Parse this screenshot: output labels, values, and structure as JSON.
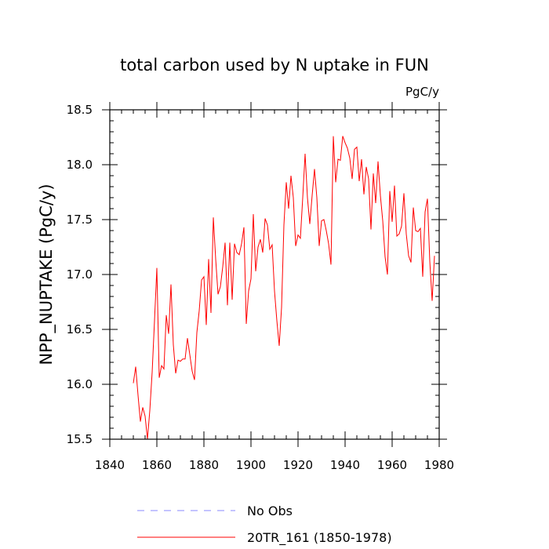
{
  "chart_data": {
    "type": "line",
    "title": "total carbon used by N uptake in FUN",
    "units": "PgC/y",
    "xlabel": "",
    "ylabel": "NPP_NUPTAKE  (PgC/y)",
    "xlim": [
      1840,
      1980
    ],
    "ylim": [
      15.5,
      18.5
    ],
    "xticks": [
      1840,
      1860,
      1880,
      1900,
      1920,
      1940,
      1960,
      1980
    ],
    "yticks": [
      15.5,
      16.0,
      16.5,
      17.0,
      17.5,
      18.0,
      18.5
    ],
    "ytick_labels": [
      "15.5",
      "16.0",
      "16.5",
      "17.0",
      "17.5",
      "18.0",
      "18.5"
    ],
    "colors": {
      "series": "#ff0000",
      "obs": "#8888ff"
    },
    "legend": [
      {
        "name": "No Obs",
        "style": "dashed",
        "color": "#8888ff"
      },
      {
        "name": "20TR_161 (1850-1978)",
        "style": "solid",
        "color": "#ff0000"
      }
    ],
    "series": [
      {
        "name": "20TR_161 (1850-1978)",
        "x_start": 1850,
        "values": [
          16.01,
          16.16,
          15.9,
          15.66,
          15.79,
          15.71,
          15.5,
          15.76,
          16.11,
          16.58,
          17.06,
          16.06,
          16.17,
          16.14,
          16.63,
          16.46,
          16.91,
          16.36,
          16.1,
          16.22,
          16.21,
          16.23,
          16.23,
          16.42,
          16.27,
          16.12,
          16.04,
          16.47,
          16.67,
          16.95,
          16.98,
          16.54,
          17.14,
          16.65,
          17.52,
          17.14,
          16.82,
          16.89,
          17.07,
          17.29,
          16.72,
          17.29,
          16.77,
          17.28,
          17.2,
          17.18,
          17.28,
          17.43,
          16.55,
          16.85,
          16.96,
          17.55,
          17.03,
          17.25,
          17.32,
          17.2,
          17.51,
          17.45,
          17.23,
          17.27,
          16.85,
          16.58,
          16.35,
          16.7,
          17.45,
          17.84,
          17.6,
          17.9,
          17.7,
          17.26,
          17.36,
          17.33,
          17.7,
          18.1,
          17.7,
          17.46,
          17.72,
          17.96,
          17.7,
          17.26,
          17.49,
          17.5,
          17.4,
          17.28,
          17.09,
          18.26,
          17.84,
          18.05,
          18.04,
          18.26,
          18.2,
          18.15,
          18.06,
          17.87,
          18.14,
          18.16,
          17.85,
          18.05,
          17.73,
          17.98,
          17.87,
          17.41,
          17.92,
          17.65,
          18.03,
          17.72,
          17.49,
          17.16,
          17.0,
          17.76,
          17.48,
          17.81,
          17.35,
          17.37,
          17.44,
          17.74,
          17.37,
          17.17,
          17.11,
          17.61,
          17.4,
          17.39,
          17.42,
          16.98,
          17.57,
          17.69,
          17.12,
          16.76,
          17.17
        ]
      }
    ]
  }
}
